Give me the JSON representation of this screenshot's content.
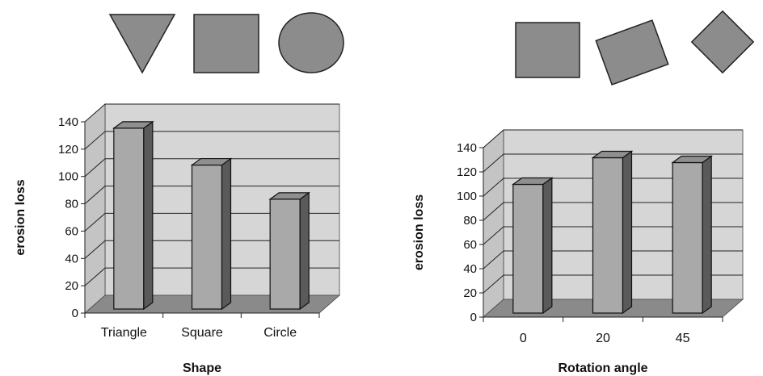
{
  "colors": {
    "wall": "#d6d6d6",
    "floor": "#8a8a8a",
    "bar_front": "#a9a9a9",
    "bar_side": "#5a5a5a",
    "bar_top": "#8f8f8f",
    "shape_fill": "#8c8c8c",
    "gridline": "#222222"
  },
  "shape_icons": [
    {
      "name": "triangle-icon"
    },
    {
      "name": "square-icon"
    },
    {
      "name": "circle-icon"
    },
    {
      "name": "square-0deg-icon"
    },
    {
      "name": "square-20deg-icon"
    },
    {
      "name": "square-45deg-icon"
    }
  ],
  "chart_data": [
    {
      "type": "bar",
      "title": "",
      "xlabel": "Shape",
      "ylabel": "erosion loss",
      "categories": [
        "Triangle",
        "Square",
        "Circle"
      ],
      "values": [
        133,
        106,
        81
      ],
      "ylim": [
        0,
        140
      ],
      "yticks": [
        "0",
        "20",
        "40",
        "60",
        "80",
        "100",
        "120",
        "140"
      ],
      "grid": true,
      "style": "3d"
    },
    {
      "type": "bar",
      "title": "",
      "xlabel": "Rotation angle",
      "ylabel": "erosion loss",
      "categories": [
        "0",
        "20",
        "45"
      ],
      "values": [
        107,
        129,
        125
      ],
      "ylim": [
        0,
        140
      ],
      "yticks": [
        "0",
        "20",
        "40",
        "60",
        "80",
        "100",
        "120",
        "140"
      ],
      "grid": true,
      "style": "3d"
    }
  ]
}
